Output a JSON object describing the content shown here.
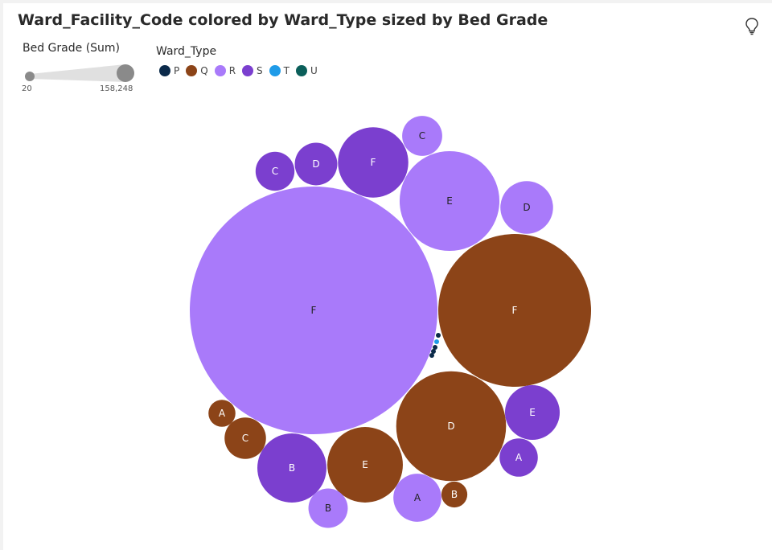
{
  "title": "Ward_Facility_Code colored by Ward_Type sized by Bed Grade",
  "size_legend": {
    "title": "Bed Grade (Sum)",
    "min_label": "20",
    "max_label": "158,248"
  },
  "color_legend": {
    "title": "Ward_Type",
    "items": [
      {
        "label": "P",
        "color": "#0b2a4a"
      },
      {
        "label": "Q",
        "color": "#8c4418"
      },
      {
        "label": "R",
        "color": "#a97afa"
      },
      {
        "label": "S",
        "color": "#7b3fcf"
      },
      {
        "label": "T",
        "color": "#1f9be8"
      },
      {
        "label": "U",
        "color": "#0b5f5a"
      }
    ]
  },
  "icons": {
    "insight": "lightbulb-icon"
  },
  "chart_data": {
    "type": "packed-bubble",
    "title": "Ward_Facility_Code colored by Ward_Type sized by Bed Grade",
    "size_measure": "Bed Grade (Sum)",
    "color_measure": "Ward_Type",
    "size_range": [
      20,
      158248
    ],
    "points": [
      {
        "label": "F",
        "ward_type": "R",
        "value": 158248
      },
      {
        "label": "F",
        "ward_type": "Q",
        "value": 60233
      },
      {
        "label": "D",
        "ward_type": "Q",
        "value": 31128
      },
      {
        "label": "E",
        "ward_type": "R",
        "value": 25683
      },
      {
        "label": "E",
        "ward_type": "Q",
        "value": 14712
      },
      {
        "label": "F",
        "ward_type": "S",
        "value": 12768
      },
      {
        "label": "B",
        "ward_type": "S",
        "value": 12323
      },
      {
        "label": "D",
        "ward_type": "R",
        "value": 7161
      },
      {
        "label": "E",
        "ward_type": "S",
        "value": 7724
      },
      {
        "label": "A",
        "ward_type": "R",
        "value": 5936
      },
      {
        "label": "D",
        "ward_type": "S",
        "value": 4667
      },
      {
        "label": "C",
        "ward_type": "R",
        "value": 4138
      },
      {
        "label": "B",
        "ward_type": "R",
        "value": 3988
      },
      {
        "label": "C",
        "ward_type": "S",
        "value": 3904
      },
      {
        "label": "C",
        "ward_type": "Q",
        "value": 4427
      },
      {
        "label": "A",
        "ward_type": "S",
        "value": 3769
      },
      {
        "label": "A",
        "ward_type": "Q",
        "value": 1879
      },
      {
        "label": "B",
        "ward_type": "Q",
        "value": 1736
      },
      {
        "label": "",
        "ward_type": "P",
        "value": 60
      },
      {
        "label": "",
        "ward_type": "T",
        "value": 40
      },
      {
        "label": "",
        "ward_type": "P",
        "value": 30
      },
      {
        "label": "",
        "ward_type": "P",
        "value": 24
      },
      {
        "label": "",
        "ward_type": "P",
        "value": 20
      }
    ]
  }
}
